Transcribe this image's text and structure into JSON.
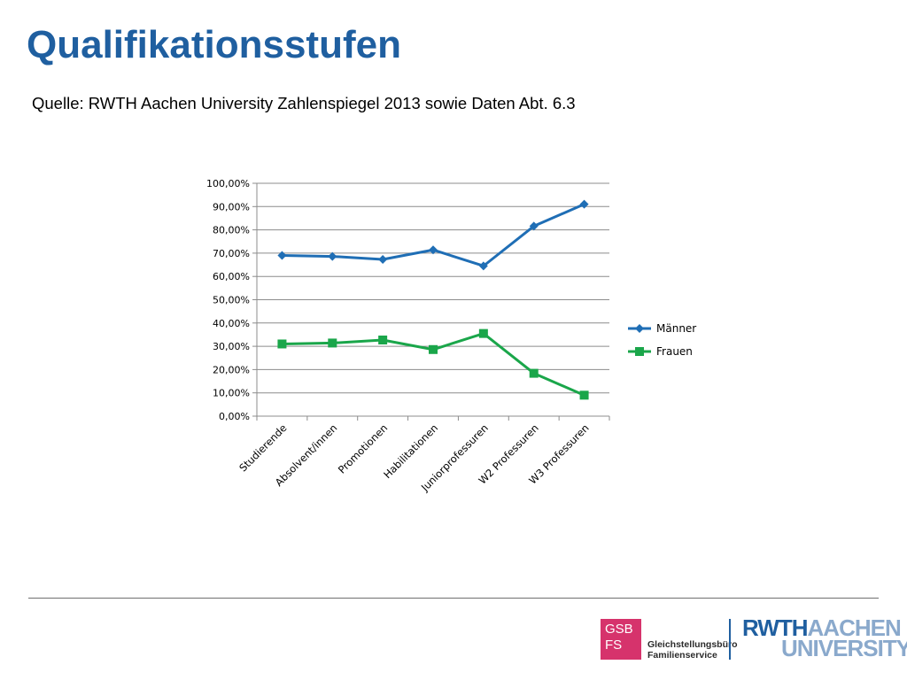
{
  "header": {
    "title": "Qualifikationsstufen",
    "source": "Quelle: RWTH Aachen University Zahlenspiegel 2013 sowie Daten Abt. 6.3"
  },
  "footer": {
    "gsb_line1": "GSB",
    "gsb_line2": "FS",
    "gsb_name1": "Gleichstellungsbüro",
    "gsb_name2": "Familienservice",
    "rwth_word": "RWTH",
    "aachen_word": "AACHEN",
    "university_word": "UNIVERSITY"
  },
  "colors": {
    "title": "#1f5fa0",
    "maenner": "#1f6eb5",
    "frauen": "#1aa64a",
    "gsb": "#d6336c",
    "rwth": "#1f5fa0",
    "aachen": "#8aa9cc"
  },
  "chart_data": {
    "type": "line",
    "categories": [
      "Studierende",
      "Absolvent/innen",
      "Promotionen",
      "Habilitationen",
      "Juniorprofessuren",
      "W2 Professuren",
      "W3 Professuren"
    ],
    "series": [
      {
        "name": "Männer",
        "values": [
          69.0,
          68.6,
          67.3,
          71.4,
          64.5,
          81.6,
          91.0
        ],
        "marker": "diamond"
      },
      {
        "name": "Frauen",
        "values": [
          31.0,
          31.4,
          32.7,
          28.6,
          35.5,
          18.4,
          9.0
        ],
        "marker": "square"
      }
    ],
    "yticks": [
      "0,00%",
      "10,00%",
      "20,00%",
      "30,00%",
      "40,00%",
      "50,00%",
      "60,00%",
      "70,00%",
      "80,00%",
      "90,00%",
      "100,00%"
    ],
    "ylim": [
      0,
      100
    ],
    "grid": true,
    "legend": "right",
    "title": "",
    "xlabel": "",
    "ylabel": ""
  }
}
